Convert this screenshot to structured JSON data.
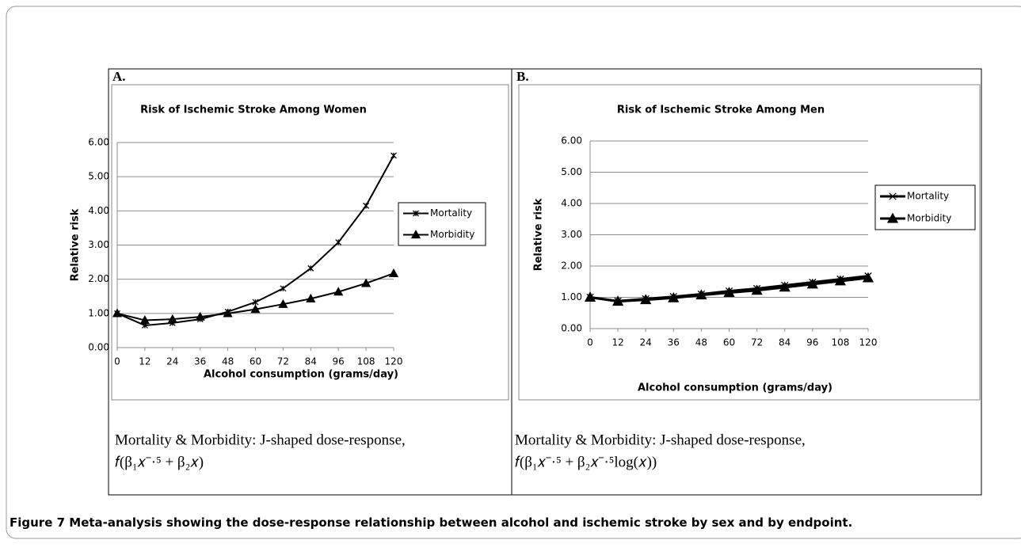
{
  "chart_data": [
    {
      "type": "line",
      "panel_label": "A.",
      "title": "Risk of Ischemic Stroke Among Women",
      "xlabel": "Alcohol consumption (grams/day)",
      "ylabel": "Relative risk",
      "x": [
        0,
        12,
        24,
        36,
        48,
        60,
        72,
        84,
        96,
        108,
        120
      ],
      "xlim": [
        0,
        120
      ],
      "xticks": [
        0,
        12,
        24,
        36,
        48,
        60,
        72,
        84,
        96,
        108,
        120
      ],
      "ylim": [
        0,
        6
      ],
      "yticks": [
        {
          "value": 0,
          "label": "0.00"
        },
        {
          "value": 1,
          "label": "1.00"
        },
        {
          "value": 2,
          "label": "2.00"
        },
        {
          "value": 3,
          "label": "3.00"
        },
        {
          "value": 4,
          "label": "4.00"
        },
        {
          "value": 5,
          "label": "5.00"
        },
        {
          "value": 6,
          "label": "6.00"
        }
      ],
      "grid": true,
      "legend": "right",
      "series": [
        {
          "name": "Mortality",
          "color": "#000000",
          "marker": "asterisk",
          "values": [
            1.0,
            0.65,
            0.72,
            0.83,
            1.05,
            1.33,
            1.73,
            2.32,
            3.08,
            4.15,
            5.62
          ]
        },
        {
          "name": "Morbidity",
          "color": "#000000",
          "marker": "triangle",
          "values": [
            1.0,
            0.8,
            0.83,
            0.9,
            1.0,
            1.12,
            1.27,
            1.43,
            1.63,
            1.88,
            2.17
          ]
        }
      ],
      "caption": "Mortality & Morbidity: J-shaped dose-response,",
      "formula": "𝑓(β₁𝑥⁻·⁵ + β₂𝑥)"
    },
    {
      "type": "line",
      "panel_label": "B.",
      "title": "Risk of Ischemic Stroke Among Men",
      "xlabel": "Alcohol consumption (grams/day)",
      "ylabel": "Relative risk",
      "x": [
        0,
        12,
        24,
        36,
        48,
        60,
        72,
        84,
        96,
        108,
        120
      ],
      "xlim": [
        0,
        120
      ],
      "xticks": [
        0,
        12,
        24,
        36,
        48,
        60,
        72,
        84,
        96,
        108,
        120
      ],
      "ylim": [
        0,
        6
      ],
      "yticks": [
        {
          "value": 0,
          "label": "0.00"
        },
        {
          "value": 1,
          "label": "1.00"
        },
        {
          "value": 2,
          "label": "2.00"
        },
        {
          "value": 3,
          "label": "3.00"
        },
        {
          "value": 4,
          "label": "4.00"
        },
        {
          "value": 5,
          "label": "5.00"
        },
        {
          "value": 6,
          "label": "6.00"
        }
      ],
      "grid": true,
      "legend": "right",
      "series": [
        {
          "name": "Mortality",
          "color": "#000000",
          "marker": "x",
          "values": [
            1.0,
            0.88,
            0.95,
            1.02,
            1.1,
            1.2,
            1.28,
            1.38,
            1.48,
            1.58,
            1.68
          ]
        },
        {
          "name": "Morbidity",
          "color": "#000000",
          "marker": "triangle",
          "values": [
            1.0,
            0.87,
            0.92,
            0.98,
            1.07,
            1.15,
            1.22,
            1.32,
            1.42,
            1.52,
            1.62
          ]
        }
      ],
      "caption": "Mortality & Morbidity: J-shaped dose-response,",
      "formula": "𝑓(β₁𝑥⁻·⁵ + β₂𝑥⁻·⁵log(𝑥))"
    }
  ],
  "figure_label": "Figure 7",
  "figure_caption": "Meta-analysis showing the dose-response relationship between alcohol and ischemic stroke by sex and by endpoint."
}
